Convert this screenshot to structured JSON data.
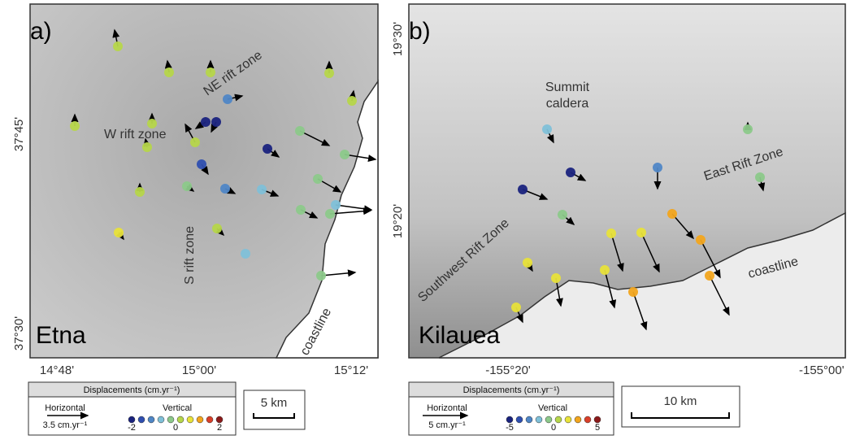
{
  "panels": [
    {
      "label": "a)",
      "name": "Etna",
      "features": {
        "ne_rift": "NE rift zone",
        "w_rift": "W rift zone",
        "s_rift": "S rift zone",
        "coast": "coastline"
      },
      "lat_labels": [
        "37°45'",
        "37°30'"
      ],
      "lon_labels": [
        "14°48'",
        "15°00'",
        "15°12'"
      ],
      "legend": {
        "title": "Displacements (cm.yr⁻¹)",
        "horizontal": "Horizontal",
        "horizontal_scale": "3.5 cm.yr⁻¹",
        "vertical": "Vertical",
        "vertical_ticks": [
          "-2",
          "0",
          "2"
        ]
      },
      "scale_bar": "5 km"
    },
    {
      "label": "b)",
      "name": "Kilauea",
      "features": {
        "summit": [
          "Summit",
          "caldera"
        ],
        "east_rift": "East Rift Zone",
        "sw_rift": "Southwest Rift Zone",
        "coast": "coastline"
      },
      "lat_labels": [
        "19°30'",
        "19°20'"
      ],
      "lon_labels": [
        "-155°20'",
        "-155°00'"
      ],
      "legend": {
        "title": "Displacements (cm.yr⁻¹)",
        "horizontal": "Horizontal",
        "horizontal_scale": "5 cm.yr⁻¹",
        "vertical": "Vertical",
        "vertical_ticks": [
          "-5",
          "0",
          "5"
        ]
      },
      "scale_bar": "10 km"
    }
  ]
}
